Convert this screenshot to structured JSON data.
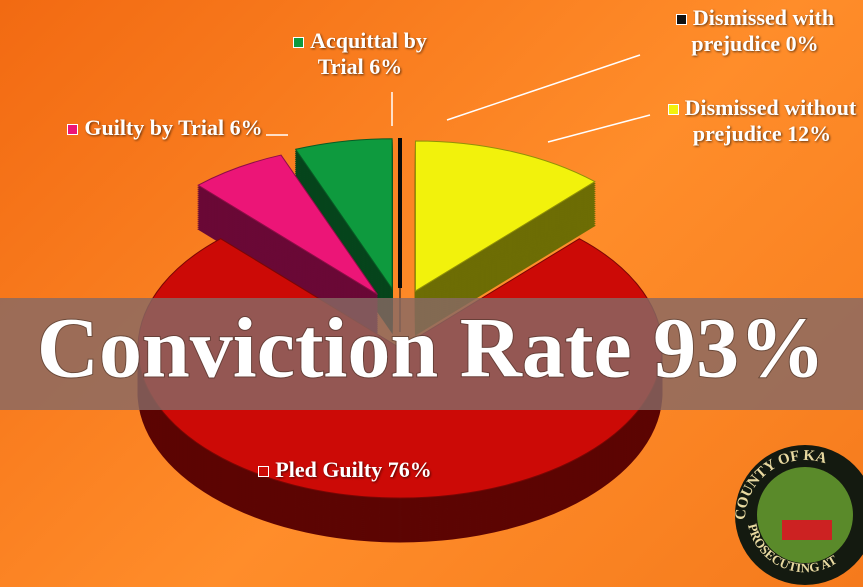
{
  "chart_data": {
    "type": "pie",
    "categories": [
      "Dismissed with prejudice",
      "Dismissed without prejudice",
      "Pled Guilty",
      "Guilty by Trial",
      "Acquittal by Trial"
    ],
    "values": [
      0,
      12,
      76,
      6,
      6
    ],
    "value_labels": [
      "0%",
      "12%",
      "76%",
      "6%",
      "6%"
    ],
    "colors": [
      "#111111",
      "#f2f20c",
      "#cc0a06",
      "#ec1577",
      "#0e9a3e"
    ],
    "annotations": [
      "Conviction Rate 93%"
    ],
    "seal": [
      "COUNTY OF KA",
      "PROSECUTING AT"
    ]
  }
}
